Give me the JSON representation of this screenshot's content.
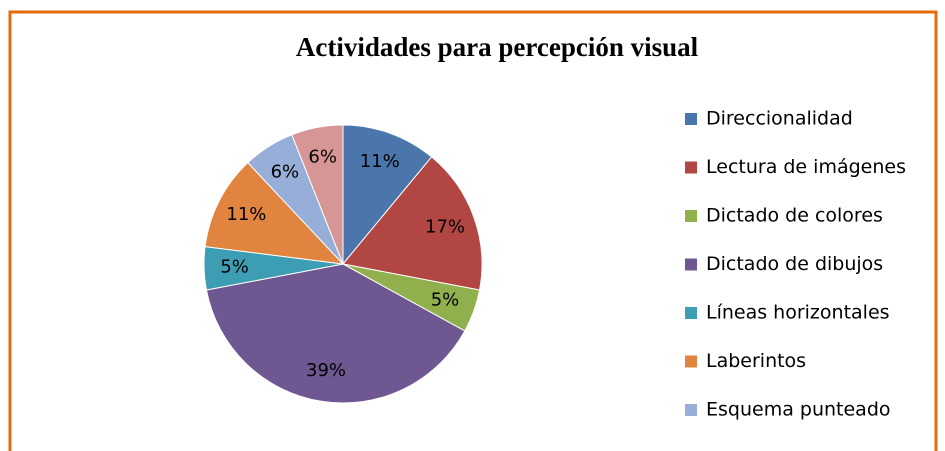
{
  "chart_data": {
    "type": "pie",
    "title": "Actividades para percepción visual",
    "categories": [
      "Direccionalidad",
      "Lectura de imágenes",
      "Dictado de colores",
      "Dictado de dibujos",
      "Líneas horizontales",
      "Laberintos",
      "Esquema punteado",
      null
    ],
    "values": [
      11,
      17,
      5,
      39,
      5,
      11,
      6,
      6
    ],
    "value_labels": [
      "11%",
      "17%",
      "5%",
      "39%",
      "5%",
      "11%",
      "6%",
      "6%"
    ],
    "colors": [
      "#4a76ac",
      "#b24643",
      "#8fb04d",
      "#6f5891",
      "#3d9db3",
      "#e0843f",
      "#97aed8",
      "#d69695"
    ],
    "legend": "right"
  }
}
